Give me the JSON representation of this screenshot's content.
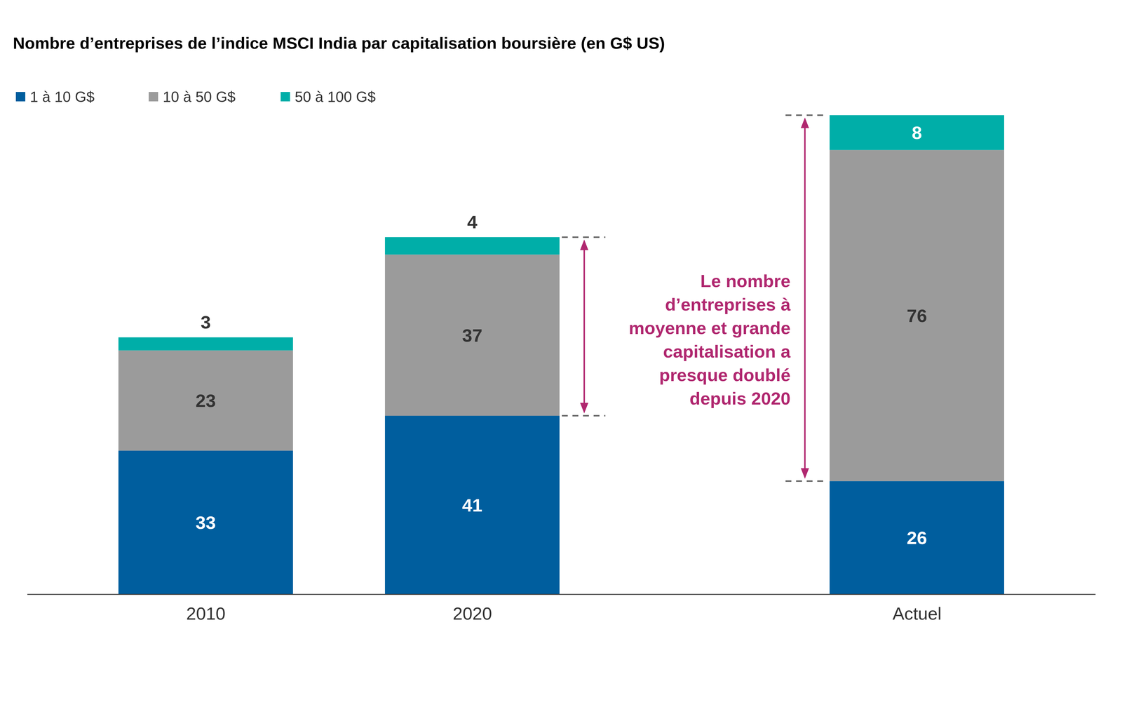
{
  "chart_data": {
    "type": "bar",
    "title": "Nombre d’entreprises de l’indice MSCI India par capitalisation boursière (en G$ US)",
    "categories": [
      "2010",
      "2020",
      "Actuel"
    ],
    "series": [
      {
        "name": "1 à 10 G$",
        "color": "#005e9e",
        "values": [
          33,
          41,
          26
        ]
      },
      {
        "name": "10 à 50 G$",
        "color": "#9b9b9b",
        "values": [
          23,
          37,
          76
        ]
      },
      {
        "name": "50 à 100 G$",
        "color": "#00aea8",
        "values": [
          3,
          4,
          8
        ]
      }
    ],
    "stacked": true,
    "data_labels": true,
    "legend": "top-left",
    "tick_labels": "x",
    "ylim": [
      0,
      110
    ],
    "annotation": [
      "Le nombre",
      "d’entreprises à",
      "moyenne et grande",
      "capitalisation a",
      "presque doublé",
      "depuis 2020"
    ]
  }
}
